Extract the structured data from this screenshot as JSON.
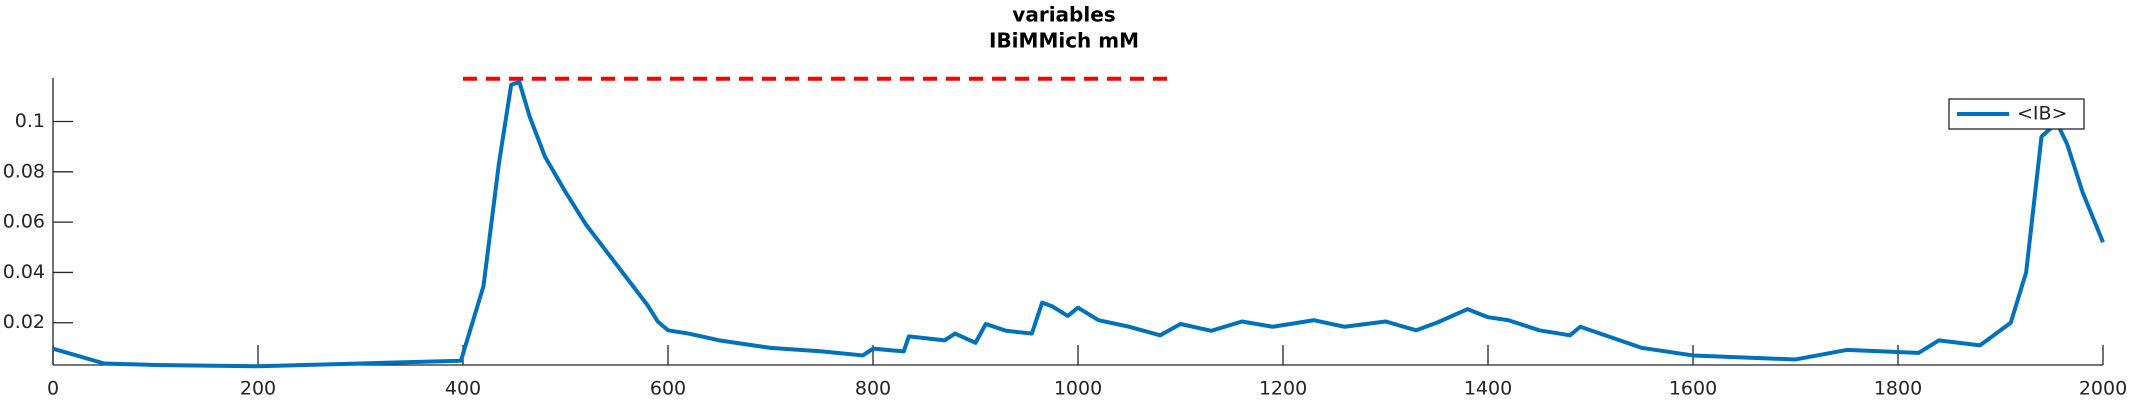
{
  "chart_data": {
    "type": "line",
    "title": "variables",
    "subtitle": "IBiMMich mM",
    "x": [
      0,
      50,
      100,
      200,
      300,
      398,
      420,
      435,
      447,
      455,
      465,
      480,
      500,
      520,
      550,
      580,
      590,
      600,
      620,
      650,
      700,
      750,
      790,
      800,
      830,
      835,
      870,
      880,
      900,
      910,
      930,
      955,
      965,
      975,
      990,
      1000,
      1020,
      1050,
      1080,
      1100,
      1130,
      1160,
      1190,
      1230,
      1260,
      1300,
      1330,
      1350,
      1380,
      1400,
      1420,
      1450,
      1480,
      1490,
      1550,
      1600,
      1700,
      1750,
      1820,
      1840,
      1880,
      1910,
      1925,
      1940,
      1955,
      1965,
      1980,
      2000
    ],
    "series": [
      {
        "name": "<IB>",
        "color": "#0072bd",
        "values": [
          0.0097,
          0.0038,
          0.0032,
          0.0027,
          0.0038,
          0.0049,
          0.0346,
          0.0832,
          0.1146,
          0.1157,
          0.102,
          0.086,
          0.072,
          0.059,
          0.043,
          0.027,
          0.0205,
          0.017,
          0.0157,
          0.013,
          0.01,
          0.0086,
          0.007,
          0.0097,
          0.0086,
          0.0146,
          0.013,
          0.0157,
          0.012,
          0.0195,
          0.0168,
          0.0157,
          0.028,
          0.0265,
          0.0227,
          0.026,
          0.021,
          0.0184,
          0.015,
          0.0195,
          0.0168,
          0.0205,
          0.0184,
          0.021,
          0.0184,
          0.0205,
          0.017,
          0.02,
          0.0254,
          0.0222,
          0.021,
          0.017,
          0.015,
          0.0184,
          0.01,
          0.007,
          0.0054,
          0.0092,
          0.008,
          0.013,
          0.011,
          0.02,
          0.04,
          0.094,
          0.0995,
          0.091,
          0.072,
          0.052
        ]
      }
    ],
    "reference_line": {
      "x": [
        400,
        1090
      ],
      "y": 0.117,
      "color": "#ff0000"
    },
    "xlim": [
      0,
      2000
    ],
    "xticks": [
      0,
      200,
      400,
      600,
      800,
      1000,
      1200,
      1400,
      1600,
      1800,
      2000
    ],
    "ylim": [
      0.0032,
      0.1173
    ],
    "yticks": [
      0.02,
      0.04,
      0.06,
      0.08,
      0.1
    ],
    "legend": "upper right",
    "grid": false
  }
}
